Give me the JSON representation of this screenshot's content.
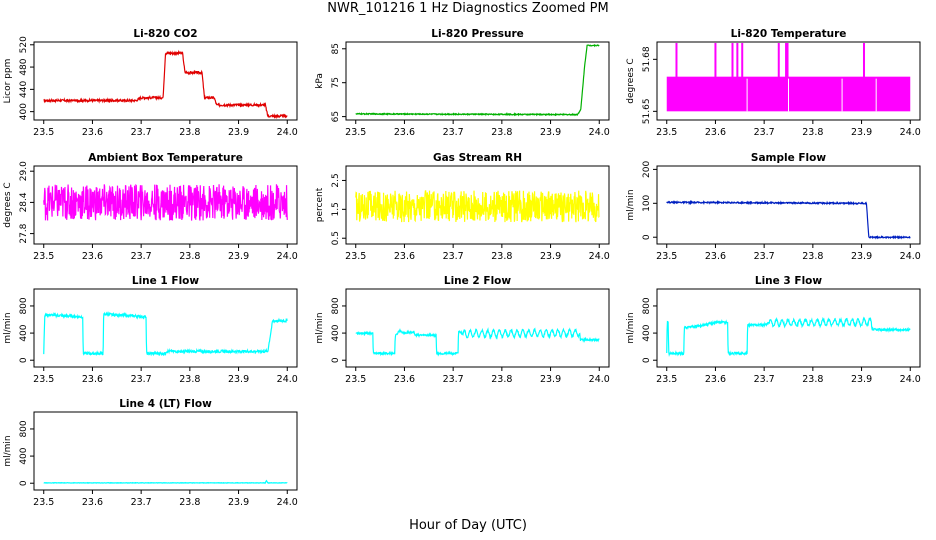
{
  "page": {
    "title": "NWR_101216  1 Hz Diagnostics Zoomed PM",
    "xcaption": "Hour of Day (UTC)"
  },
  "chart_data": [
    {
      "type": "line",
      "title": "Li-820 CO2",
      "ylabel": "Licor ppm",
      "color": "#e00000",
      "xlim": [
        23.48,
        24.02
      ],
      "ylim": [
        385,
        525
      ],
      "xticks": [
        "23.5",
        "23.6",
        "23.7",
        "23.8",
        "23.9",
        "24.0"
      ],
      "yticks": [
        {
          "v": 400,
          "t": "400"
        },
        {
          "v": 440,
          "t": "440"
        },
        {
          "v": 480,
          "t": "480"
        },
        {
          "v": 520,
          "t": "520"
        }
      ],
      "grid": false,
      "series": [
        {
          "x": [
            23.5,
            23.69,
            23.7,
            23.745,
            23.75,
            23.785,
            23.79,
            23.825,
            23.83,
            23.85,
            23.855,
            23.895,
            23.905,
            23.955,
            23.96,
            24.0
          ],
          "y": [
            420,
            420,
            425,
            425,
            505,
            505,
            470,
            470,
            425,
            425,
            412,
            412,
            412,
            412,
            392,
            392
          ]
        }
      ],
      "noise": 2
    },
    {
      "type": "line",
      "title": "Li-820 Pressure",
      "ylabel": "kPa",
      "color": "#00b000",
      "xlim": [
        23.48,
        24.02
      ],
      "ylim": [
        64,
        87
      ],
      "xticks": [
        "23.5",
        "23.6",
        "23.7",
        "23.8",
        "23.9",
        "24.0"
      ],
      "yticks": [
        {
          "v": 65,
          "t": "65"
        },
        {
          "v": 75,
          "t": "75"
        },
        {
          "v": 85,
          "t": "85"
        }
      ],
      "grid": false,
      "series": [
        {
          "x": [
            23.5,
            23.95,
            23.955,
            23.962,
            23.97,
            23.975,
            24.0
          ],
          "y": [
            65.8,
            65.6,
            65.6,
            67,
            80,
            86,
            86
          ]
        }
      ],
      "noise": 0.15
    },
    {
      "type": "area",
      "title": "Li-820 Temperature",
      "ylabel": "degrees C",
      "color": "#ff00ff",
      "xlim": [
        23.48,
        24.02
      ],
      "ylim": [
        51.645,
        51.69
      ],
      "xticks": [
        "23.5",
        "23.6",
        "23.7",
        "23.8",
        "23.9",
        "24.0"
      ],
      "yticks": [
        {
          "v": 51.65,
          "t": "51.65"
        },
        {
          "v": 51.68,
          "t": "51.68"
        }
      ],
      "grid": false,
      "series": [
        {
          "x": [
            23.5,
            24.0
          ],
          "y": [
            51.67,
            51.67
          ]
        }
      ],
      "base": 51.65,
      "spikes": [
        23.52,
        23.6,
        23.635,
        23.645,
        23.655,
        23.73,
        23.745,
        23.748,
        23.905
      ],
      "spike_top": 51.69
    },
    {
      "type": "line",
      "title": "Ambient Box Temperature",
      "ylabel": "degrees C",
      "color": "#ff00ff",
      "xlim": [
        23.48,
        24.02
      ],
      "ylim": [
        27.6,
        29.1
      ],
      "xticks": [
        "23.5",
        "23.6",
        "23.7",
        "23.8",
        "23.9",
        "24.0"
      ],
      "yticks": [
        {
          "v": 27.8,
          "t": "27.8"
        },
        {
          "v": 28.4,
          "t": "28.4"
        },
        {
          "v": 29.0,
          "t": "29.0"
        }
      ],
      "grid": false,
      "series": [
        {
          "x": [
            23.5,
            24.0
          ],
          "y": [
            28.4,
            28.4
          ]
        }
      ],
      "noise": 0.35
    },
    {
      "type": "line",
      "title": "Gas Stream RH",
      "ylabel": "percent",
      "color": "#ffff00",
      "xlim": [
        23.48,
        24.02
      ],
      "ylim": [
        0.3,
        3.0
      ],
      "xticks": [
        "23.5",
        "23.6",
        "23.7",
        "23.8",
        "23.9",
        "24.0"
      ],
      "yticks": [
        {
          "v": 0.5,
          "t": "0.5"
        },
        {
          "v": 1.5,
          "t": "1.5"
        },
        {
          "v": 2.5,
          "t": "2.5"
        }
      ],
      "grid": false,
      "series": [
        {
          "x": [
            23.5,
            24.0
          ],
          "y": [
            1.6,
            1.6
          ]
        }
      ],
      "noise": 0.55
    },
    {
      "type": "line",
      "title": "Sample Flow",
      "ylabel": "ml/min",
      "color": "#0020c0",
      "xlim": [
        23.48,
        24.02
      ],
      "ylim": [
        -20,
        210
      ],
      "xticks": [
        "23.5",
        "23.6",
        "23.7",
        "23.8",
        "23.9",
        "24.0"
      ],
      "yticks": [
        {
          "v": 0,
          "t": "0"
        },
        {
          "v": 100,
          "t": "100"
        },
        {
          "v": 200,
          "t": "200"
        }
      ],
      "grid": false,
      "series": [
        {
          "x": [
            23.5,
            23.91,
            23.915,
            24.0
          ],
          "y": [
            103,
            100,
            0,
            0
          ]
        }
      ],
      "noise": 2
    },
    {
      "type": "line",
      "title": "Line 1 Flow",
      "ylabel": "ml/min",
      "color": "#00ffff",
      "xlim": [
        23.48,
        24.02
      ],
      "ylim": [
        -100,
        1050
      ],
      "xticks": [
        "23.5",
        "23.6",
        "23.7",
        "23.8",
        "23.9",
        "24.0"
      ],
      "yticks": [
        {
          "v": 0,
          "t": "0"
        },
        {
          "v": 400,
          "t": "400"
        },
        {
          "v": 800,
          "t": "800"
        }
      ],
      "grid": false,
      "series": [
        {
          "x": [
            23.5,
            23.502,
            23.505,
            23.58,
            23.581,
            23.622,
            23.623,
            23.71,
            23.711,
            23.75,
            23.751,
            23.96,
            23.97,
            24.0
          ],
          "y": [
            100,
            650,
            670,
            640,
            100,
            100,
            680,
            640,
            100,
            100,
            130,
            130,
            580,
            580
          ]
        }
      ],
      "noise": 20
    },
    {
      "type": "line",
      "title": "Line 2 Flow",
      "ylabel": "ml/min",
      "color": "#00ffff",
      "xlim": [
        23.48,
        24.02
      ],
      "ylim": [
        -100,
        1050
      ],
      "xticks": [
        "23.5",
        "23.6",
        "23.7",
        "23.8",
        "23.9",
        "24.0"
      ],
      "yticks": [
        {
          "v": 0,
          "t": "0"
        },
        {
          "v": 400,
          "t": "400"
        },
        {
          "v": 800,
          "t": "800"
        }
      ],
      "grid": false,
      "series": [
        {
          "x": [
            23.5,
            23.535,
            23.536,
            23.58,
            23.581,
            23.59,
            23.6,
            23.62,
            23.621,
            23.665,
            23.666,
            23.71,
            23.711,
            23.72,
            23.96,
            23.961,
            24.0
          ],
          "y": [
            400,
            400,
            100,
            100,
            350,
            440,
            400,
            420,
            370,
            370,
            100,
            100,
            430,
            390,
            400,
            300,
            300
          ]
        }
      ],
      "noise": 15,
      "wave": {
        "from": 23.72,
        "to": 23.96,
        "amp": 50,
        "period": 0.012
      }
    },
    {
      "type": "line",
      "title": "Line 3 Flow",
      "ylabel": "ml/min",
      "color": "#00ffff",
      "xlim": [
        23.48,
        24.02
      ],
      "ylim": [
        -100,
        1050
      ],
      "xticks": [
        "23.5",
        "23.6",
        "23.7",
        "23.8",
        "23.9",
        "24.0"
      ],
      "yticks": [
        {
          "v": 0,
          "t": "0"
        },
        {
          "v": 400,
          "t": "400"
        },
        {
          "v": 800,
          "t": "800"
        }
      ],
      "grid": false,
      "series": [
        {
          "x": [
            23.5,
            23.501,
            23.503,
            23.504,
            23.535,
            23.536,
            23.58,
            23.6,
            23.625,
            23.626,
            23.665,
            23.666,
            23.7,
            23.71,
            23.92,
            23.921,
            24.0
          ],
          "y": [
            100,
            560,
            560,
            100,
            100,
            480,
            520,
            560,
            560,
            100,
            100,
            520,
            520,
            550,
            560,
            450,
            450
          ]
        }
      ],
      "noise": 18,
      "wave": {
        "from": 23.71,
        "to": 23.92,
        "amp": 45,
        "period": 0.012
      }
    },
    {
      "type": "line",
      "title": "Line 4 (LT) Flow",
      "ylabel": "ml/min",
      "color": "#00ffff",
      "xlim": [
        23.48,
        24.02
      ],
      "ylim": [
        -100,
        1050
      ],
      "xticks": [
        "23.5",
        "23.6",
        "23.7",
        "23.8",
        "23.9",
        "24.0"
      ],
      "yticks": [
        {
          "v": 0,
          "t": "0"
        },
        {
          "v": 400,
          "t": "400"
        },
        {
          "v": 800,
          "t": "800"
        }
      ],
      "grid": false,
      "series": [
        {
          "x": [
            23.5,
            23.955,
            23.957,
            23.96,
            24.0
          ],
          "y": [
            5,
            5,
            40,
            5,
            5
          ]
        }
      ],
      "noise": 3
    }
  ]
}
